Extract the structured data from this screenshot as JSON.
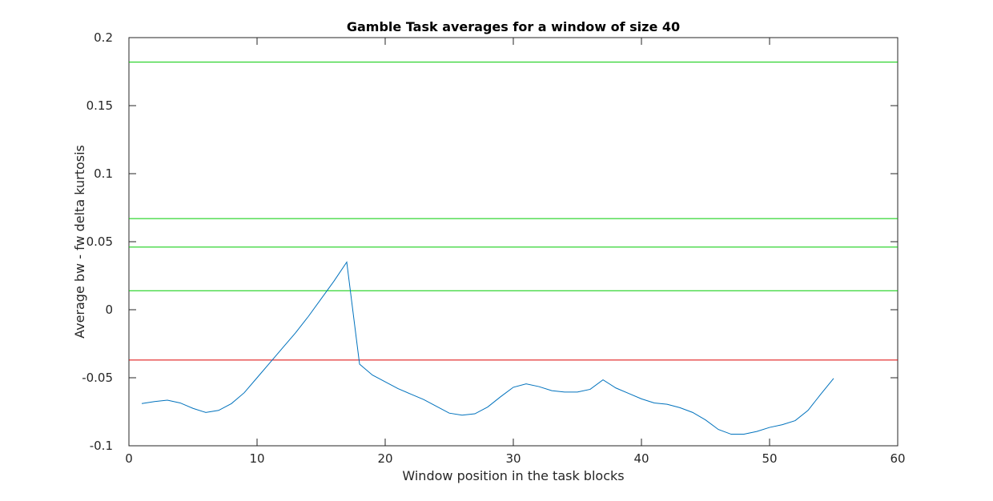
{
  "chart_data": {
    "type": "line",
    "title": "Gamble Task averages for a window of size 40",
    "xlabel": "Window position in the task blocks",
    "ylabel": "Average bw - fw delta kurtosis",
    "xlim": [
      0,
      60
    ],
    "ylim": [
      -0.1,
      0.2
    ],
    "xticks": [
      0,
      10,
      20,
      30,
      40,
      50,
      60
    ],
    "xtick_labels": [
      "0",
      "10",
      "20",
      "30",
      "40",
      "50",
      "60"
    ],
    "yticks": [
      -0.1,
      -0.05,
      0,
      0.05,
      0.1,
      0.15,
      0.2
    ],
    "ytick_labels": [
      "-0.1",
      "-0.05",
      "0",
      "0.05",
      "0.1",
      "0.15",
      "0.2"
    ],
    "grid": false,
    "series": [
      {
        "color": "#0072bd",
        "x": [
          1,
          2,
          3,
          4,
          5,
          6,
          7,
          8,
          9,
          10,
          11,
          12,
          13,
          14,
          15,
          16,
          17,
          18,
          19,
          20,
          21,
          22,
          23,
          24,
          25,
          26,
          27,
          28,
          29,
          30,
          31,
          32,
          33,
          34,
          35,
          36,
          37,
          38,
          39,
          40,
          41,
          42,
          43,
          44,
          45,
          46,
          47,
          48,
          49,
          50,
          51,
          52,
          53,
          54,
          55
        ],
        "y": [
          -0.069,
          -0.0675,
          -0.0665,
          -0.0685,
          -0.0725,
          -0.0755,
          -0.074,
          -0.069,
          -0.061,
          -0.05,
          -0.039,
          -0.028,
          -0.017,
          -0.005,
          0.008,
          0.021,
          0.035,
          -0.04,
          -0.048,
          -0.053,
          -0.058,
          -0.062,
          -0.066,
          -0.071,
          -0.076,
          -0.0775,
          -0.0765,
          -0.0715,
          -0.064,
          -0.057,
          -0.0545,
          -0.0565,
          -0.0595,
          -0.0605,
          -0.0605,
          -0.0585,
          -0.0515,
          -0.0575,
          -0.0615,
          -0.0655,
          -0.0685,
          -0.0695,
          -0.072,
          -0.0755,
          -0.081,
          -0.088,
          -0.0915,
          -0.0915,
          -0.0895,
          -0.0865,
          -0.0845,
          -0.0815,
          -0.074,
          -0.062,
          -0.0505
        ]
      }
    ],
    "reference_lines": [
      {
        "y": 0.182,
        "color": "#00cc00"
      },
      {
        "y": 0.067,
        "color": "#00cc00"
      },
      {
        "y": 0.046,
        "color": "#00cc00"
      },
      {
        "y": 0.014,
        "color": "#00cc00"
      },
      {
        "y": -0.037,
        "color": "#dd0000"
      }
    ]
  }
}
